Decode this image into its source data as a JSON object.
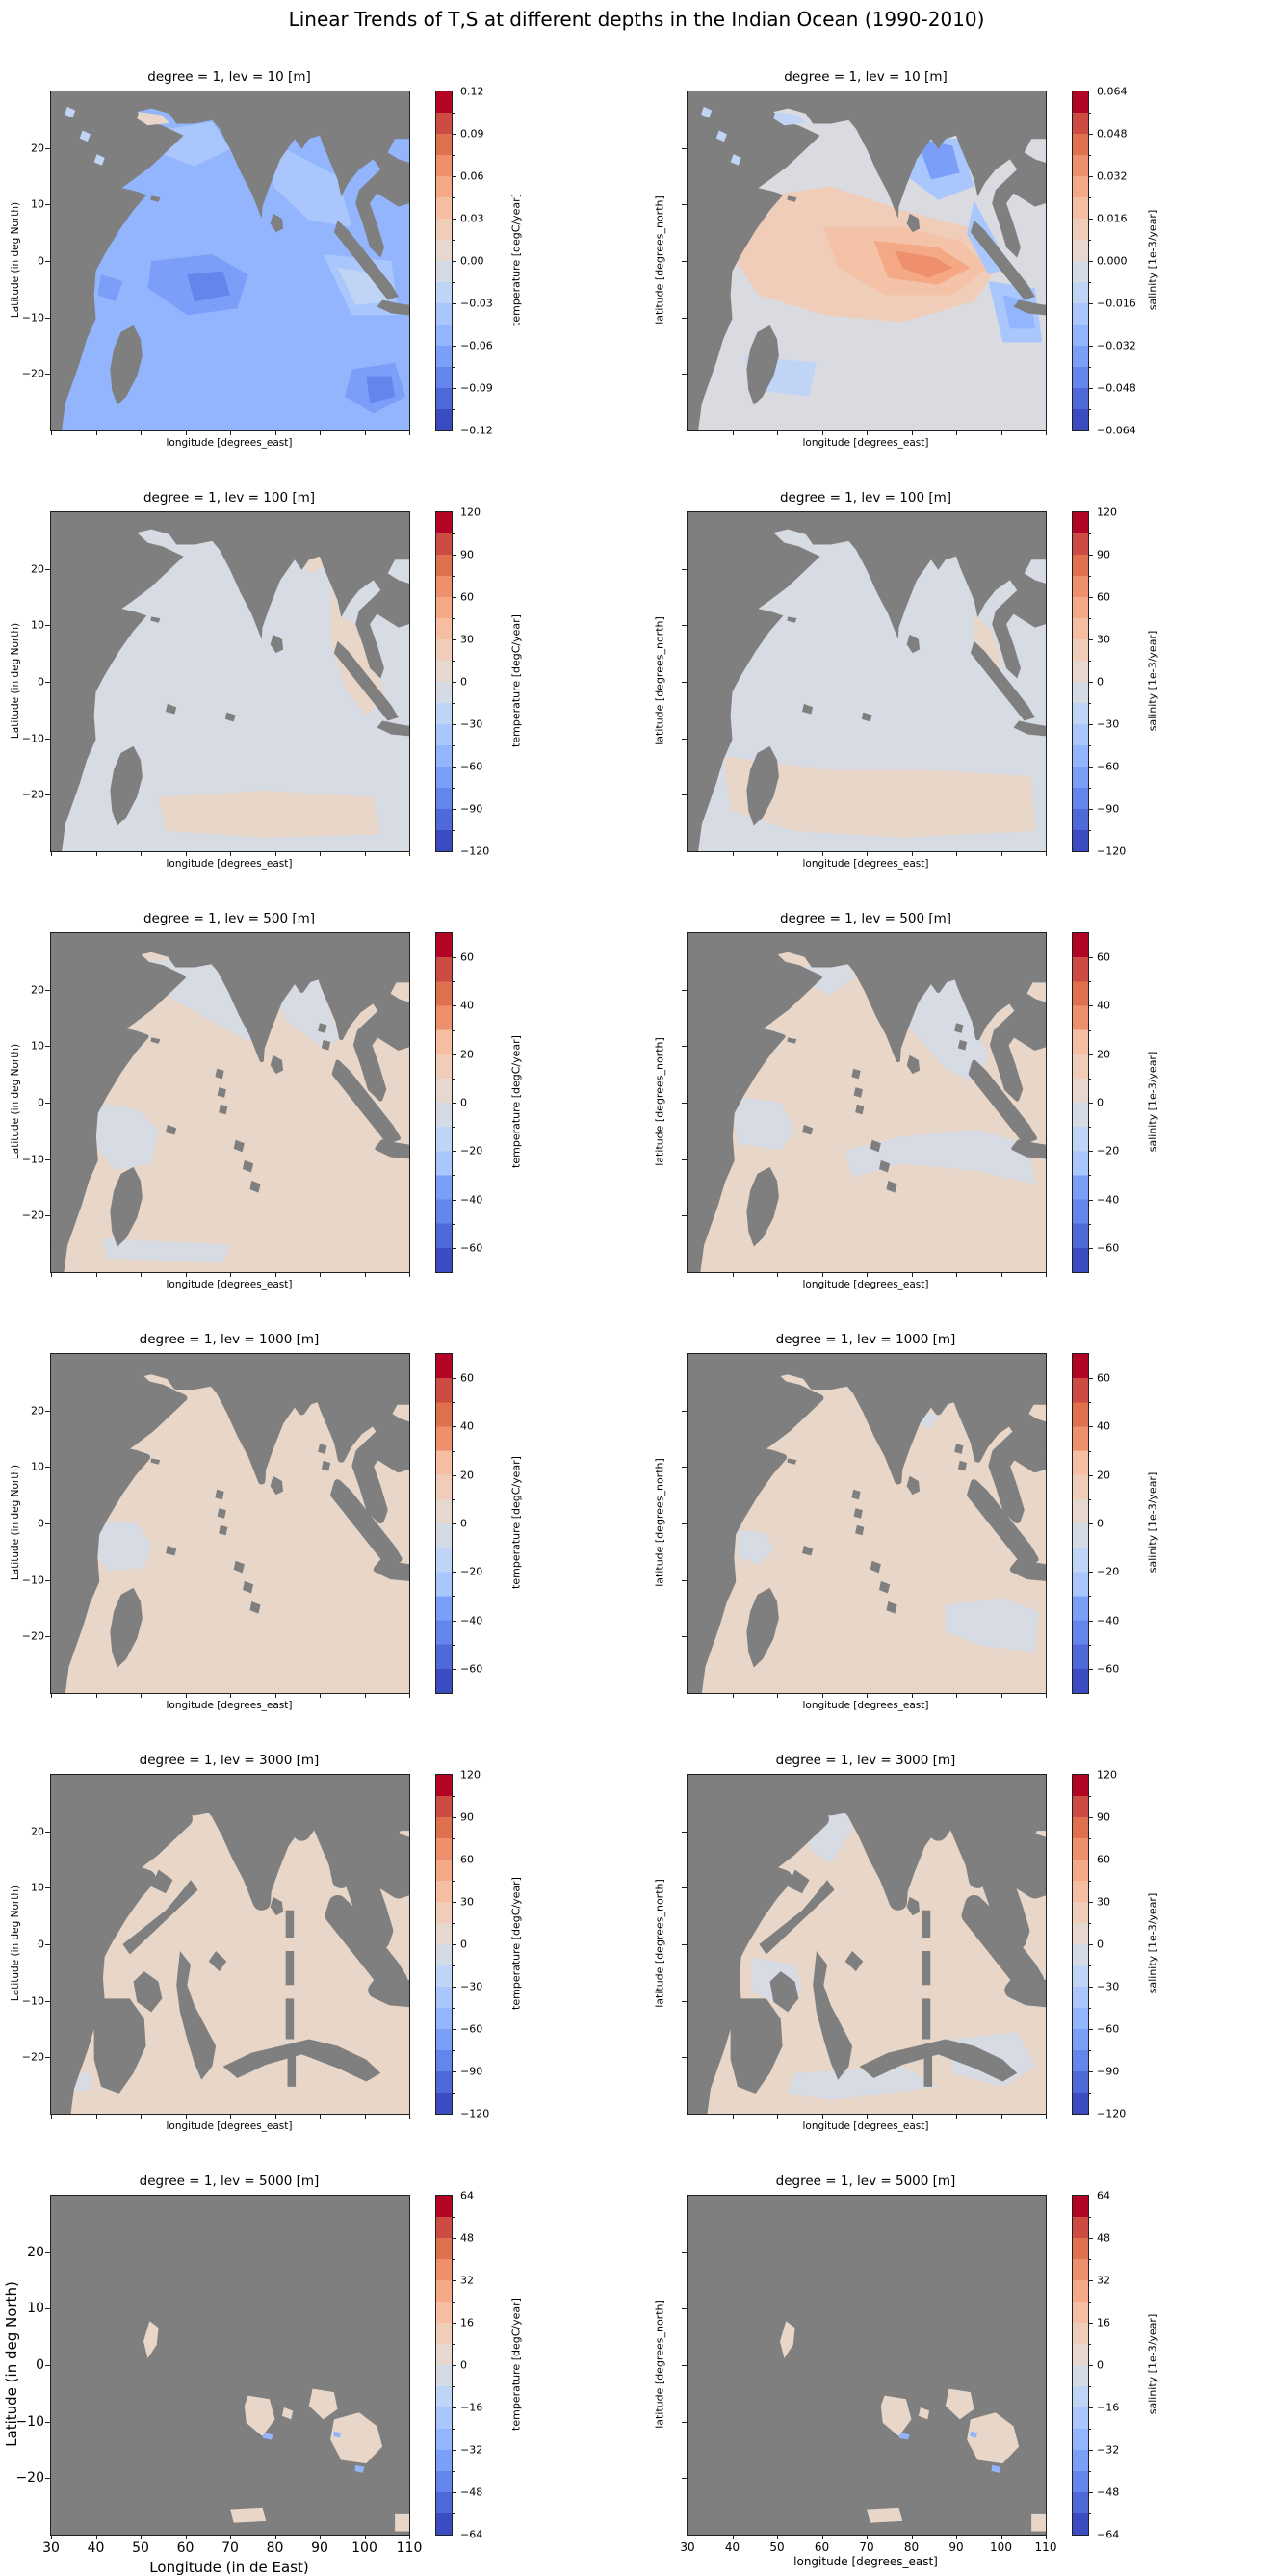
{
  "figure": {
    "title": "Linear Trends of T,S at different depths in the Indian Ocean (1990-2010)"
  },
  "axes_shared": {
    "x_tick_values": [
      30,
      40,
      50,
      60,
      70,
      80,
      90,
      100,
      110
    ],
    "x_tick_labels": [
      "30",
      "40",
      "50",
      "60",
      "70",
      "80",
      "90",
      "100",
      "110"
    ],
    "y_tick_values": [
      20,
      10,
      0,
      -10,
      -20
    ],
    "y_tick_labels": [
      "20",
      "10",
      "0",
      "−10",
      "−20"
    ],
    "lon_range": [
      30,
      110
    ],
    "lat_range": [
      -30,
      30
    ]
  },
  "panels": [
    {
      "id": "t10",
      "title": "degree = 1, lev = 10 [m]",
      "xlabel": "longitude [degrees_east]",
      "ylabel": "Latitude (in deg North)",
      "show_x_tick_labels": false,
      "show_y_tick_labels": true,
      "big_fonts": false,
      "map_variant": "t10",
      "colorbar": {
        "label": "temperature [degC/year]",
        "vmax": 0.12,
        "segments": 16,
        "tick_values": [
          0.12,
          0.09,
          0.06,
          0.03,
          0,
          -0.03,
          -0.06,
          -0.09,
          -0.12
        ],
        "tick_labels": [
          "0.12",
          "0.09",
          "0.06",
          "0.03",
          "0.00",
          "−0.03",
          "−0.06",
          "−0.09",
          "−0.12"
        ]
      }
    },
    {
      "id": "s10",
      "title": "degree = 1, lev = 10 [m]",
      "xlabel": "longitude [degrees_east]",
      "ylabel": "latitude [degrees_north]",
      "show_x_tick_labels": false,
      "show_y_tick_labels": false,
      "big_fonts": false,
      "map_variant": "s10",
      "colorbar": {
        "label": "salinity [1e-3/year]",
        "vmax": 0.064,
        "segments": 16,
        "tick_values": [
          0.064,
          0.048,
          0.032,
          0.016,
          0,
          -0.016,
          -0.032,
          -0.048,
          -0.064
        ],
        "tick_labels": [
          "0.064",
          "0.048",
          "0.032",
          "0.016",
          "0.000",
          "−0.016",
          "−0.032",
          "−0.048",
          "−0.064"
        ]
      }
    },
    {
      "id": "t100",
      "title": "degree = 1, lev = 100 [m]",
      "xlabel": "longitude [degrees_east]",
      "ylabel": "Latitude (in deg North)",
      "show_x_tick_labels": false,
      "show_y_tick_labels": true,
      "big_fonts": false,
      "map_variant": "t100",
      "colorbar": {
        "label": "temperature [degC/year]",
        "vmax": 120,
        "segments": 16,
        "tick_values": [
          120,
          90,
          60,
          30,
          0,
          -30,
          -60,
          -90,
          -120
        ],
        "tick_labels": [
          "120",
          "90",
          "60",
          "30",
          "0",
          "−30",
          "−60",
          "−90",
          "−120"
        ]
      }
    },
    {
      "id": "s100",
      "title": "degree = 1, lev = 100 [m]",
      "xlabel": "longitude [degrees_east]",
      "ylabel": "latitude [degrees_north]",
      "show_x_tick_labels": false,
      "show_y_tick_labels": false,
      "big_fonts": false,
      "map_variant": "s100",
      "colorbar": {
        "label": "salinity [1e-3/year]",
        "vmax": 120,
        "segments": 16,
        "tick_values": [
          120,
          90,
          60,
          30,
          0,
          -30,
          -60,
          -90,
          -120
        ],
        "tick_labels": [
          "120",
          "90",
          "60",
          "30",
          "0",
          "−30",
          "−60",
          "−90",
          "−120"
        ]
      }
    },
    {
      "id": "t500",
      "title": "degree = 1, lev = 500 [m]",
      "xlabel": "longitude [degrees_east]",
      "ylabel": "Latitude (in deg North)",
      "show_x_tick_labels": false,
      "show_y_tick_labels": true,
      "big_fonts": false,
      "map_variant": "t500",
      "colorbar": {
        "label": "temperature [degC/year]",
        "vmax": 70,
        "segments": 14,
        "tick_values": [
          60,
          40,
          20,
          0,
          -20,
          -40,
          -60
        ],
        "tick_labels": [
          "60",
          "40",
          "20",
          "0",
          "−20",
          "−40",
          "−60"
        ]
      }
    },
    {
      "id": "s500",
      "title": "degree = 1, lev = 500 [m]",
      "xlabel": "longitude [degrees_east]",
      "ylabel": "latitude [degrees_north]",
      "show_x_tick_labels": false,
      "show_y_tick_labels": false,
      "big_fonts": false,
      "map_variant": "s500",
      "colorbar": {
        "label": "salinity [1e-3/year]",
        "vmax": 70,
        "segments": 14,
        "tick_values": [
          60,
          40,
          20,
          0,
          -20,
          -40,
          -60
        ],
        "tick_labels": [
          "60",
          "40",
          "20",
          "0",
          "−20",
          "−40",
          "−60"
        ]
      }
    },
    {
      "id": "t1000",
      "title": "degree = 1, lev = 1000 [m]",
      "xlabel": "longitude [degrees_east]",
      "ylabel": "Latitude (in deg North)",
      "show_x_tick_labels": false,
      "show_y_tick_labels": true,
      "big_fonts": false,
      "map_variant": "t1000",
      "colorbar": {
        "label": "temperature [degC/year]",
        "vmax": 70,
        "segments": 14,
        "tick_values": [
          60,
          40,
          20,
          0,
          -20,
          -40,
          -60
        ],
        "tick_labels": [
          "60",
          "40",
          "20",
          "0",
          "−20",
          "−40",
          "−60"
        ]
      }
    },
    {
      "id": "s1000",
      "title": "degree = 1, lev = 1000 [m]",
      "xlabel": "longitude [degrees_east]",
      "ylabel": "latitude [degrees_north]",
      "show_x_tick_labels": false,
      "show_y_tick_labels": false,
      "big_fonts": false,
      "map_variant": "s1000",
      "colorbar": {
        "label": "salinity [1e-3/year]",
        "vmax": 70,
        "segments": 14,
        "tick_values": [
          60,
          40,
          20,
          0,
          -20,
          -40,
          -60
        ],
        "tick_labels": [
          "60",
          "40",
          "20",
          "0",
          "−20",
          "−40",
          "−60"
        ]
      }
    },
    {
      "id": "t3000",
      "title": "degree = 1, lev = 3000 [m]",
      "xlabel": "longitude [degrees_east]",
      "ylabel": "Latitude (in deg North)",
      "show_x_tick_labels": false,
      "show_y_tick_labels": true,
      "big_fonts": false,
      "map_variant": "t3000",
      "colorbar": {
        "label": "temperature [degC/year]",
        "vmax": 120,
        "segments": 16,
        "tick_values": [
          120,
          90,
          60,
          30,
          0,
          -30,
          -60,
          -90,
          -120
        ],
        "tick_labels": [
          "120",
          "90",
          "60",
          "30",
          "0",
          "−30",
          "−60",
          "−90",
          "−120"
        ]
      }
    },
    {
      "id": "s3000",
      "title": "degree = 1, lev = 3000 [m]",
      "xlabel": "longitude [degrees_east]",
      "ylabel": "latitude [degrees_north]",
      "show_x_tick_labels": false,
      "show_y_tick_labels": false,
      "big_fonts": false,
      "map_variant": "s3000",
      "colorbar": {
        "label": "salinity [1e-3/year]",
        "vmax": 120,
        "segments": 16,
        "tick_values": [
          120,
          90,
          60,
          30,
          0,
          -30,
          -60,
          -90,
          -120
        ],
        "tick_labels": [
          "120",
          "90",
          "60",
          "30",
          "0",
          "−30",
          "−60",
          "−90",
          "−120"
        ]
      }
    },
    {
      "id": "t5000",
      "title": "degree = 1, lev = 5000 [m]",
      "xlabel": "Longitude (in de East)",
      "ylabel": "Latitude (in deg North)",
      "show_x_tick_labels": true,
      "show_y_tick_labels": true,
      "big_fonts": true,
      "map_variant": "t5000",
      "colorbar": {
        "label": "temperature [degC/year]",
        "vmax": 64,
        "segments": 16,
        "tick_values": [
          64,
          48,
          32,
          16,
          0,
          -16,
          -32,
          -48,
          -64
        ],
        "tick_labels": [
          "64",
          "48",
          "32",
          "16",
          "0",
          "−16",
          "−32",
          "−48",
          "−64"
        ]
      }
    },
    {
      "id": "s5000",
      "title": "degree = 1, lev = 5000 [m]",
      "xlabel": "longitude [degrees_east]",
      "ylabel": "latitude [degrees_north]",
      "show_x_tick_labels": true,
      "show_y_tick_labels": false,
      "big_fonts": false,
      "map_variant": "s5000",
      "colorbar": {
        "label": "salinity [1e-3/year]",
        "vmax": 64,
        "segments": 16,
        "tick_values": [
          64,
          48,
          32,
          16,
          0,
          -16,
          -32,
          -48,
          -64
        ],
        "tick_labels": [
          "64",
          "48",
          "32",
          "16",
          "0",
          "−16",
          "−32",
          "−48",
          "−64"
        ]
      }
    }
  ],
  "chart_data": [
    {
      "type": "heatmap",
      "subtype": "filled-contour-map",
      "panel": "row1-left",
      "title": "degree = 1, lev = 10 [m]",
      "variable": "temperature trend",
      "units": "degC/year",
      "depth_m": 10,
      "colormap": "coolwarm",
      "lon_range": [
        30,
        110
      ],
      "lat_range": [
        -30,
        30
      ],
      "colorbar_range": [
        -0.12,
        0.12
      ],
      "colorbar_ticks": [
        0.12,
        0.09,
        0.06,
        0.03,
        0,
        -0.03,
        -0.06,
        -0.09,
        -0.12
      ],
      "pattern": "ocean mostly negative (blues -0.03 to -0.09); darkest blue blobs near 60E,8S and the SE corner; pale near-zero strip east of 85E around 5-15S; land masked gray"
    },
    {
      "type": "heatmap",
      "subtype": "filled-contour-map",
      "panel": "row1-right",
      "title": "degree = 1, lev = 10 [m]",
      "variable": "salinity trend",
      "units": "1e-3/year",
      "depth_m": 10,
      "colormap": "coolwarm",
      "lon_range": [
        30,
        110
      ],
      "lat_range": [
        -30,
        30
      ],
      "colorbar_range": [
        -0.064,
        0.064
      ],
      "colorbar_ticks": [
        0.064,
        0.048,
        0.032,
        0.016,
        0,
        -0.016,
        -0.032,
        -0.048,
        -0.064
      ],
      "pattern": "strong positive (orange ~+0.03) core in central basin near 85-95E,5-12S; negative (blue) Bay of Bengal and southeast corner; near zero west"
    },
    {
      "type": "heatmap",
      "subtype": "filled-contour-map",
      "panel": "row2-left",
      "title": "degree = 1, lev = 100 [m]",
      "variable": "temperature trend",
      "units": "degC/year",
      "depth_m": 100,
      "colormap": "coolwarm",
      "lon_range": [
        30,
        110
      ],
      "lat_range": [
        -30,
        30
      ],
      "colorbar_range": [
        -120,
        120
      ],
      "colorbar_ticks": [
        120,
        90,
        60,
        30,
        0,
        -30,
        -60,
        -90,
        -120
      ],
      "pattern": "near zero everywhere: faint negative pale blue basin with faint positive tan along eastern boundary and south"
    },
    {
      "type": "heatmap",
      "subtype": "filled-contour-map",
      "panel": "row2-right",
      "title": "degree = 1, lev = 100 [m]",
      "variable": "salinity trend",
      "units": "1e-3/year",
      "depth_m": 100,
      "colormap": "coolwarm",
      "lon_range": [
        30,
        110
      ],
      "lat_range": [
        -30,
        30
      ],
      "colorbar_range": [
        -120,
        120
      ],
      "colorbar_ticks": [
        120,
        90,
        60,
        30,
        0,
        -30,
        -60,
        -90,
        -120
      ],
      "pattern": "near zero pale blue basin with faint positive tan band in the south and small patches near Arabia and east"
    },
    {
      "type": "heatmap",
      "subtype": "filled-contour-map",
      "panel": "row3-left",
      "title": "degree = 1, lev = 500 [m]",
      "variable": "temperature trend",
      "units": "degC/year",
      "depth_m": 500,
      "colormap": "coolwarm",
      "lon_range": [
        30,
        110
      ],
      "lat_range": [
        -30,
        30
      ],
      "colorbar_range": [
        -70,
        70
      ],
      "colorbar_ticks": [
        60,
        40,
        20,
        0,
        -20,
        -40,
        -60
      ],
      "pattern": "faint positive tan central basin; faint negative pale blue in Arabian Sea, Bay of Bengal, a western blob near 45E,5S and along the southern edge"
    },
    {
      "type": "heatmap",
      "subtype": "filled-contour-map",
      "panel": "row3-right",
      "title": "degree = 1, lev = 500 [m]",
      "variable": "salinity trend",
      "units": "1e-3/year",
      "depth_m": 500,
      "colormap": "coolwarm",
      "lon_range": [
        30,
        110
      ],
      "lat_range": [
        -30,
        30
      ],
      "colorbar_range": [
        -70,
        70
      ],
      "colorbar_ticks": [
        60,
        40,
        20,
        0,
        -20,
        -40,
        -60
      ],
      "pattern": "faint positive tan basin; pale blue Bay of Bengal, northern Arabian Sea tip, western blob and a curved band near 10-15S in the east"
    },
    {
      "type": "heatmap",
      "subtype": "filled-contour-map",
      "panel": "row4-left",
      "title": "degree = 1, lev = 1000 [m]",
      "variable": "temperature trend",
      "units": "degC/year",
      "depth_m": 1000,
      "colormap": "coolwarm",
      "lon_range": [
        30,
        110
      ],
      "lat_range": [
        -30,
        30
      ],
      "colorbar_range": [
        -70,
        70
      ],
      "colorbar_ticks": [
        60,
        40,
        20,
        0,
        -20,
        -40,
        -60
      ],
      "pattern": "almost uniform faint positive tan; pale blue blob off East Africa near 50E,5S; more land/ridge areas masked gray"
    },
    {
      "type": "heatmap",
      "subtype": "filled-contour-map",
      "panel": "row4-right",
      "title": "degree = 1, lev = 1000 [m]",
      "variable": "salinity trend",
      "units": "1e-3/year",
      "depth_m": 1000,
      "colormap": "coolwarm",
      "lon_range": [
        30,
        110
      ],
      "lat_range": [
        -30,
        30
      ],
      "colorbar_range": [
        -70,
        70
      ],
      "colorbar_ticks": [
        60,
        40,
        20,
        0,
        -20,
        -40,
        -60
      ],
      "pattern": "faint positive tan basin; pale blue in the southeast and a small western blob"
    },
    {
      "type": "heatmap",
      "subtype": "filled-contour-map",
      "panel": "row5-left",
      "title": "degree = 1, lev = 3000 [m]",
      "variable": "temperature trend",
      "units": "degC/year",
      "depth_m": 3000,
      "colormap": "coolwarm",
      "lon_range": [
        30,
        110
      ],
      "lat_range": [
        -30,
        30
      ],
      "colorbar_range": [
        -120,
        120
      ],
      "colorbar_ticks": [
        120,
        90,
        60,
        30,
        0,
        -30,
        -60,
        -90,
        -120
      ],
      "pattern": "deep basins faint positive tan; extensive gray mask from ridges and plateaus; tiny pale blue patch at the far southwest"
    },
    {
      "type": "heatmap",
      "subtype": "filled-contour-map",
      "panel": "row5-right",
      "title": "degree = 1, lev = 3000 [m]",
      "variable": "salinity trend",
      "units": "1e-3/year",
      "depth_m": 3000,
      "colormap": "coolwarm",
      "lon_range": [
        30,
        110
      ],
      "lat_range": [
        -30,
        30
      ],
      "colorbar_range": [
        -120,
        120
      ],
      "colorbar_ticks": [
        120,
        90,
        60,
        30,
        0,
        -30,
        -60,
        -90,
        -120
      ],
      "pattern": "faint positive tan basins with pale blue in the northern Arabian basin, a west-central blob and the southeastern corner; heavy ridge masking"
    },
    {
      "type": "heatmap",
      "subtype": "filled-contour-map",
      "panel": "row6-left",
      "title": "degree = 1, lev = 5000 [m]",
      "variable": "temperature trend",
      "units": "degC/year",
      "depth_m": 5000,
      "colormap": "coolwarm",
      "lon_range": [
        30,
        110
      ],
      "lat_range": [
        -30,
        30
      ],
      "colorbar_range": [
        -64,
        64
      ],
      "colorbar_ticks": [
        64,
        48,
        32,
        16,
        0,
        -16,
        -32,
        -48,
        -64
      ],
      "pattern": "nearly everything masked gray; small faint-positive tan abyssal patches near 53E/0N, 75-80E/10S, 95-105E/15-25S, 52-58E/27S with tiny blue flecks"
    },
    {
      "type": "heatmap",
      "subtype": "filled-contour-map",
      "panel": "row6-right",
      "title": "degree = 1, lev = 5000 [m]",
      "variable": "salinity trend",
      "units": "1e-3/year",
      "depth_m": 5000,
      "colormap": "coolwarm",
      "lon_range": [
        30,
        110
      ],
      "lat_range": [
        -30,
        30
      ],
      "colorbar_range": [
        -64,
        64
      ],
      "colorbar_ticks": [
        64,
        48,
        32,
        16,
        0,
        -16,
        -32,
        -48,
        -64
      ],
      "pattern": "same abyssal patch layout as left panel, faint positive tan with tiny blue flecks"
    }
  ],
  "colors": {
    "land_mask": "#7f7f7f",
    "frame": "#1f1f1f",
    "coolwarm_min": "#3b4cc0",
    "coolwarm_mid": "#dddcdc",
    "coolwarm_max": "#b40426"
  }
}
